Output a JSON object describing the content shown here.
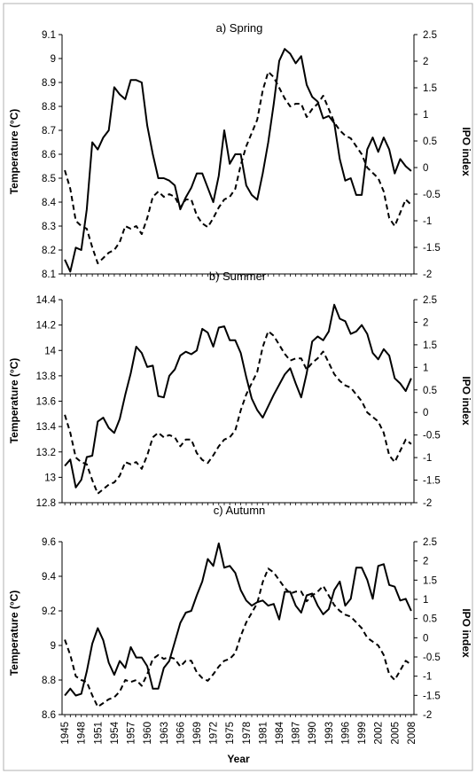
{
  "chart_data": [
    {
      "type": "line",
      "title": "a) Spring",
      "ylabel": "Temperature (°C)",
      "y2label": "IPO index",
      "ylim": [
        8.1,
        9.1
      ],
      "yticks": [
        "8.1",
        "8.2",
        "8.3",
        "8.4",
        "8.5",
        "8.6",
        "8.7",
        "8.8",
        "8.9",
        "9",
        "9.1"
      ],
      "y2lim": [
        -2,
        2.5
      ],
      "y2ticks": [
        "-2",
        "-1.5",
        "-1",
        "-0.5",
        "0",
        "0.5",
        "1",
        "1.5",
        "2",
        "2.5"
      ],
      "x": [
        1945,
        1946,
        1947,
        1948,
        1949,
        1950,
        1951,
        1952,
        1953,
        1954,
        1955,
        1956,
        1957,
        1958,
        1959,
        1960,
        1961,
        1962,
        1963,
        1964,
        1965,
        1966,
        1967,
        1968,
        1969,
        1970,
        1971,
        1972,
        1973,
        1974,
        1975,
        1976,
        1977,
        1978,
        1979,
        1980,
        1981,
        1982,
        1983,
        1984,
        1985,
        1986,
        1987,
        1988,
        1989,
        1990,
        1991,
        1992,
        1993,
        1994,
        1995,
        1996,
        1997,
        1998,
        1999,
        2000,
        2001,
        2002,
        2003,
        2004,
        2005,
        2006,
        2007,
        2008
      ],
      "series": [
        {
          "values": [
            8.16,
            8.11,
            8.21,
            8.2,
            8.37,
            8.65,
            8.62,
            8.67,
            8.7,
            8.88,
            8.85,
            8.83,
            8.91,
            8.91,
            8.9,
            8.72,
            8.6,
            8.5,
            8.5,
            8.49,
            8.47,
            8.37,
            8.42,
            8.46,
            8.52,
            8.52,
            8.46,
            8.4,
            8.51,
            8.7,
            8.56,
            8.6,
            8.6,
            8.47,
            8.43,
            8.41,
            8.52,
            8.65,
            8.81,
            8.99,
            9.04,
            9.02,
            8.98,
            9.01,
            8.89,
            8.84,
            8.82,
            8.75,
            8.76,
            8.73,
            8.58,
            8.49,
            8.5,
            8.43,
            8.43,
            8.62,
            8.67,
            8.61,
            8.67,
            8.62,
            8.52,
            8.58,
            8.55,
            8.53
          ]
        },
        {
          "values": [
            -0.05,
            -0.4,
            -1.0,
            -1.1,
            -1.15,
            -1.5,
            -1.8,
            -1.7,
            -1.6,
            -1.55,
            -1.4,
            -1.1,
            -1.15,
            -1.1,
            -1.25,
            -0.95,
            -0.55,
            -0.45,
            -0.55,
            -0.5,
            -0.55,
            -0.75,
            -0.6,
            -0.6,
            -0.9,
            -1.05,
            -1.12,
            -0.95,
            -0.75,
            -0.6,
            -0.55,
            -0.4,
            0.05,
            0.4,
            0.65,
            0.9,
            1.45,
            1.8,
            1.7,
            1.5,
            1.3,
            1.15,
            1.2,
            1.2,
            0.95,
            1.1,
            1.2,
            1.35,
            1.1,
            0.85,
            0.7,
            0.6,
            0.55,
            0.4,
            0.25,
            0.0,
            -0.1,
            -0.2,
            -0.45,
            -0.95,
            -1.1,
            -0.85,
            -0.6,
            -0.7
          ]
        }
      ]
    },
    {
      "type": "line",
      "title": "b) Summer",
      "ylabel": "Temperature (°C)",
      "y2label": "IPO index",
      "ylim": [
        12.8,
        14.4
      ],
      "yticks": [
        "12.8",
        "13",
        "13.2",
        "13.4",
        "13.6",
        "13.8",
        "14",
        "14.2",
        "14.4"
      ],
      "y2lim": [
        -2,
        2.5
      ],
      "y2ticks": [
        "-2",
        "-1.5",
        "-1",
        "-0.5",
        "0",
        "0.5",
        "1",
        "1.5",
        "2",
        "2.5"
      ],
      "x": [
        1945,
        1946,
        1947,
        1948,
        1949,
        1950,
        1951,
        1952,
        1953,
        1954,
        1955,
        1956,
        1957,
        1958,
        1959,
        1960,
        1961,
        1962,
        1963,
        1964,
        1965,
        1966,
        1967,
        1968,
        1969,
        1970,
        1971,
        1972,
        1973,
        1974,
        1975,
        1976,
        1977,
        1978,
        1979,
        1980,
        1981,
        1982,
        1983,
        1984,
        1985,
        1986,
        1987,
        1988,
        1989,
        1990,
        1991,
        1992,
        1993,
        1994,
        1995,
        1996,
        1997,
        1998,
        1999,
        2000,
        2001,
        2002,
        2003,
        2004,
        2005,
        2006,
        2007,
        2008
      ],
      "series": [
        {
          "values": [
            13.09,
            13.14,
            12.92,
            12.98,
            13.16,
            13.17,
            13.44,
            13.47,
            13.39,
            13.35,
            13.46,
            13.65,
            13.82,
            14.03,
            13.98,
            13.87,
            13.88,
            13.64,
            13.63,
            13.8,
            13.85,
            13.96,
            13.99,
            13.97,
            14.0,
            14.17,
            14.14,
            14.03,
            14.18,
            14.19,
            14.08,
            14.08,
            13.98,
            13.79,
            13.62,
            13.53,
            13.47,
            13.56,
            13.65,
            13.73,
            13.81,
            13.86,
            13.74,
            13.63,
            13.82,
            14.07,
            14.11,
            14.08,
            14.15,
            14.36,
            14.25,
            14.23,
            14.13,
            14.15,
            14.2,
            14.13,
            13.98,
            13.93,
            14.01,
            13.96,
            13.78,
            13.74,
            13.68,
            13.78
          ]
        },
        {
          "values": [
            -0.05,
            -0.45,
            -1.0,
            -1.1,
            -1.15,
            -1.5,
            -1.8,
            -1.7,
            -1.6,
            -1.55,
            -1.4,
            -1.1,
            -1.15,
            -1.1,
            -1.25,
            -0.95,
            -0.55,
            -0.45,
            -0.55,
            -0.5,
            -0.55,
            -0.75,
            -0.6,
            -0.6,
            -0.9,
            -1.05,
            -1.12,
            -0.95,
            -0.75,
            -0.6,
            -0.55,
            -0.4,
            0.05,
            0.4,
            0.65,
            0.9,
            1.45,
            1.8,
            1.7,
            1.5,
            1.3,
            1.15,
            1.2,
            1.2,
            0.95,
            1.1,
            1.2,
            1.35,
            1.1,
            0.85,
            0.7,
            0.6,
            0.55,
            0.4,
            0.25,
            0.0,
            -0.1,
            -0.2,
            -0.45,
            -0.95,
            -1.1,
            -0.85,
            -0.6,
            -0.7
          ]
        }
      ]
    },
    {
      "type": "line",
      "title": "c) Autumn",
      "ylabel": "Temperature (°C)",
      "y2label": "IPO index",
      "xlabel": "Year",
      "ylim": [
        8.6,
        9.6
      ],
      "yticks": [
        "8.6",
        "8.8",
        "9",
        "9.2",
        "9.4",
        "9.6"
      ],
      "y2lim": [
        -2,
        2.5
      ],
      "y2ticks": [
        "-2",
        "-1.5",
        "-1",
        "-0.5",
        "0",
        "0.5",
        "1",
        "1.5",
        "2",
        "2.5"
      ],
      "xticks": [
        "1945",
        "1948",
        "1951",
        "1954",
        "1957",
        "1960",
        "1963",
        "1966",
        "1969",
        "1972",
        "1975",
        "1978",
        "1981",
        "1984",
        "1987",
        "1990",
        "1993",
        "1996",
        "1999",
        "2002",
        "2005",
        "2008"
      ],
      "x": [
        1945,
        1946,
        1947,
        1948,
        1949,
        1950,
        1951,
        1952,
        1953,
        1954,
        1955,
        1956,
        1957,
        1958,
        1959,
        1960,
        1961,
        1962,
        1963,
        1964,
        1965,
        1966,
        1967,
        1968,
        1969,
        1970,
        1971,
        1972,
        1973,
        1974,
        1975,
        1976,
        1977,
        1978,
        1979,
        1980,
        1981,
        1982,
        1983,
        1984,
        1985,
        1986,
        1987,
        1988,
        1989,
        1990,
        1991,
        1992,
        1993,
        1994,
        1995,
        1996,
        1997,
        1998,
        1999,
        2000,
        2001,
        2002,
        2003,
        2004,
        2005,
        2006,
        2007,
        2008
      ],
      "series": [
        {
          "values": [
            8.71,
            8.75,
            8.71,
            8.72,
            8.85,
            9.01,
            9.1,
            9.03,
            8.9,
            8.83,
            8.91,
            8.87,
            8.99,
            8.93,
            8.93,
            8.88,
            8.75,
            8.75,
            8.87,
            8.91,
            9.02,
            9.13,
            9.19,
            9.2,
            9.29,
            9.37,
            9.5,
            9.46,
            9.59,
            9.45,
            9.46,
            9.42,
            9.32,
            9.26,
            9.23,
            9.25,
            9.26,
            9.23,
            9.24,
            9.15,
            9.31,
            9.31,
            9.23,
            9.19,
            9.29,
            9.3,
            9.23,
            9.18,
            9.21,
            9.32,
            9.37,
            9.23,
            9.27,
            9.45,
            9.45,
            9.38,
            9.27,
            9.46,
            9.47,
            9.35,
            9.34,
            9.26,
            9.27,
            9.2
          ]
        },
        {
          "values": [
            -0.05,
            -0.45,
            -1.0,
            -1.1,
            -1.15,
            -1.5,
            -1.8,
            -1.7,
            -1.6,
            -1.55,
            -1.4,
            -1.1,
            -1.15,
            -1.1,
            -1.25,
            -0.95,
            -0.55,
            -0.45,
            -0.55,
            -0.5,
            -0.55,
            -0.75,
            -0.6,
            -0.6,
            -0.9,
            -1.05,
            -1.12,
            -0.95,
            -0.75,
            -0.6,
            -0.55,
            -0.4,
            0.05,
            0.4,
            0.65,
            0.9,
            1.45,
            1.8,
            1.7,
            1.5,
            1.3,
            1.15,
            1.2,
            1.2,
            0.95,
            1.1,
            1.2,
            1.35,
            1.1,
            0.85,
            0.7,
            0.6,
            0.55,
            0.4,
            0.25,
            0.0,
            -0.1,
            -0.2,
            -0.45,
            -0.95,
            -1.1,
            -0.85,
            -0.6,
            -0.7
          ]
        }
      ]
    }
  ]
}
